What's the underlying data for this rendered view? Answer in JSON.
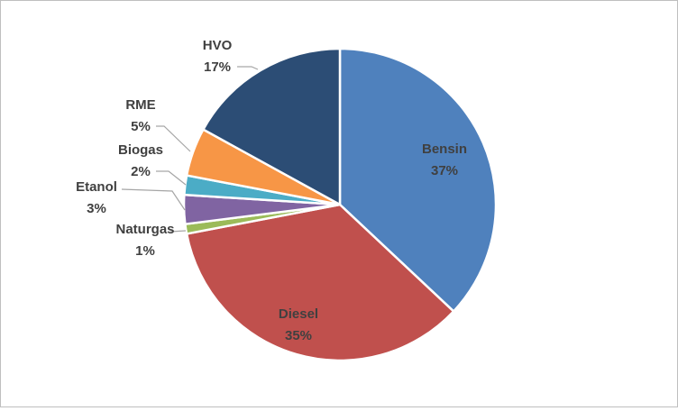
{
  "chart_data": {
    "type": "pie",
    "title": "",
    "start_angle_deg": 0,
    "direction": "clockwise",
    "legend": "none",
    "slices": [
      {
        "label": "Bensin",
        "value": 37,
        "value_label": "37%",
        "color": "#4f81bd",
        "label_color": "#404040",
        "label_placement": "inside"
      },
      {
        "label": "Diesel",
        "value": 35,
        "value_label": "35%",
        "color": "#c0504d",
        "label_color": "#404040",
        "label_placement": "inside"
      },
      {
        "label": "Naturgas",
        "value": 1,
        "value_label": "1%",
        "color": "#9bbb59",
        "label_color": "#404040",
        "label_placement": "outside"
      },
      {
        "label": "Etanol",
        "value": 3,
        "value_label": "3%",
        "color": "#8064a2",
        "label_color": "#404040",
        "label_placement": "outside"
      },
      {
        "label": "Biogas",
        "value": 2,
        "value_label": "2%",
        "color": "#4bacc6",
        "label_color": "#404040",
        "label_placement": "outside"
      },
      {
        "label": "RME",
        "value": 5,
        "value_label": "5%",
        "color": "#f79646",
        "label_color": "#404040",
        "label_placement": "outside"
      },
      {
        "label": "HVO",
        "value": 17,
        "value_label": "17%",
        "color": "#2c4d75",
        "label_color": "#404040",
        "label_placement": "outside"
      }
    ]
  }
}
